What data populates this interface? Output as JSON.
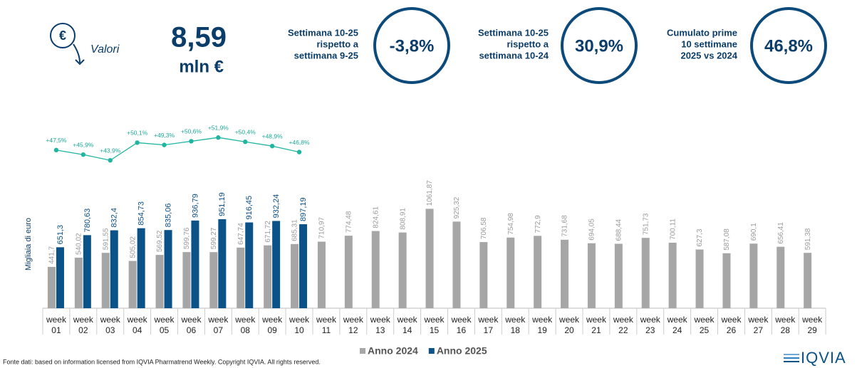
{
  "header": {
    "icon": "€",
    "label": "Valori",
    "value": "8,59",
    "unit": "mln €",
    "kpis": [
      {
        "lines": [
          "Settimana 10-25",
          "rispetto a",
          "settimana 9-25"
        ],
        "value": "-3,8%"
      },
      {
        "lines": [
          "Settimana 10-25",
          "rispetto a",
          "settimana 10-24"
        ],
        "value": "30,9%"
      },
      {
        "lines": [
          "Cumulato prime",
          "10 settimane",
          "2025 vs 2024"
        ],
        "value": "46,8%"
      }
    ]
  },
  "chart_data": {
    "type": "bar",
    "y_label": "Migliaia di euro",
    "categories": [
      "week 01",
      "week 02",
      "week 03",
      "week 04",
      "week 05",
      "week 06",
      "week 07",
      "week 08",
      "week 09",
      "week 10",
      "week 11",
      "week 12",
      "week 13",
      "week 14",
      "week 15",
      "week 16",
      "week 17",
      "week 18",
      "week 19",
      "week 20",
      "week 21",
      "week 22",
      "week 23",
      "week 24",
      "week 25",
      "week 26",
      "week 27",
      "week 28",
      "week 29"
    ],
    "ylim": [
      0,
      2000
    ],
    "y2lim": [
      -8,
      57.7
    ],
    "series": [
      {
        "name": "Anno 2024",
        "color": "#a6a6a6",
        "values": [
          441.7,
          540.02,
          591.55,
          505.02,
          569.52,
          599.76,
          599.27,
          647.74,
          671.72,
          685.31,
          710.97,
          774.48,
          824.61,
          808.91,
          1061.87,
          925.32,
          706.58,
          754.98,
          772.9,
          731.68,
          694.05,
          688.44,
          751.73,
          700.11,
          627.3,
          587.08,
          690.1,
          656.41,
          591.38
        ],
        "value_labels": [
          "441,7",
          "540,02",
          "591,55",
          "505,02",
          "569,52",
          "599,76",
          "599,27",
          "647,74",
          "671,72",
          "685,31",
          "710,97",
          "774,48",
          "824,61",
          "808,91",
          "1061,87",
          "925,32",
          "706,58",
          "754,98",
          "772,9",
          "731,68",
          "694,05",
          "688,44",
          "751,73",
          "700,11",
          "627,3",
          "587,08",
          "690,1",
          "656,41",
          "591,38"
        ]
      },
      {
        "name": "Anno 2025",
        "color": "#0b5288",
        "values": [
          651.3,
          780.63,
          832.4,
          854.73,
          835.06,
          936.79,
          951.19,
          916.45,
          932.24,
          897.19,
          null,
          null,
          null,
          null,
          null,
          null,
          null,
          null,
          null,
          null,
          null,
          null,
          null,
          null,
          null,
          null,
          null,
          null,
          null
        ],
        "value_labels": [
          "651,3",
          "780,63",
          "832,4",
          "854,73",
          "835,06",
          "936,79",
          "951,19",
          "916,45",
          "932,24",
          "897,19",
          null,
          null,
          null,
          null,
          null,
          null,
          null,
          null,
          null,
          null,
          null,
          null,
          null,
          null,
          null,
          null,
          null,
          null,
          null
        ]
      },
      {
        "type": "line",
        "axis": "y2",
        "color": "#1fb5a0",
        "values": [
          47.5,
          45.9,
          43.9,
          50.1,
          49.3,
          50.6,
          51.9,
          50.4,
          48.9,
          46.8,
          null,
          null,
          null,
          null,
          null,
          null,
          null,
          null,
          null,
          null,
          null,
          null,
          null,
          null,
          null,
          null,
          null,
          null,
          null
        ],
        "value_labels": [
          "+47,5%",
          "+45,9%",
          "+43,9%",
          "+50,1%",
          "+49,3%",
          "+50,6%",
          "+51,9%",
          "+50,4%",
          "+48,9%",
          "+46,8%",
          null,
          null,
          null,
          null,
          null,
          null,
          null,
          null,
          null,
          null,
          null,
          null,
          null,
          null,
          null,
          null,
          null,
          null,
          null
        ]
      }
    ]
  },
  "footer": {
    "source": "Fonte dati: based on information licensed from IQVIA Pharmatrend Weekly. Copyright IQVIA. All rights reserved.",
    "logo": "IQVIA"
  }
}
